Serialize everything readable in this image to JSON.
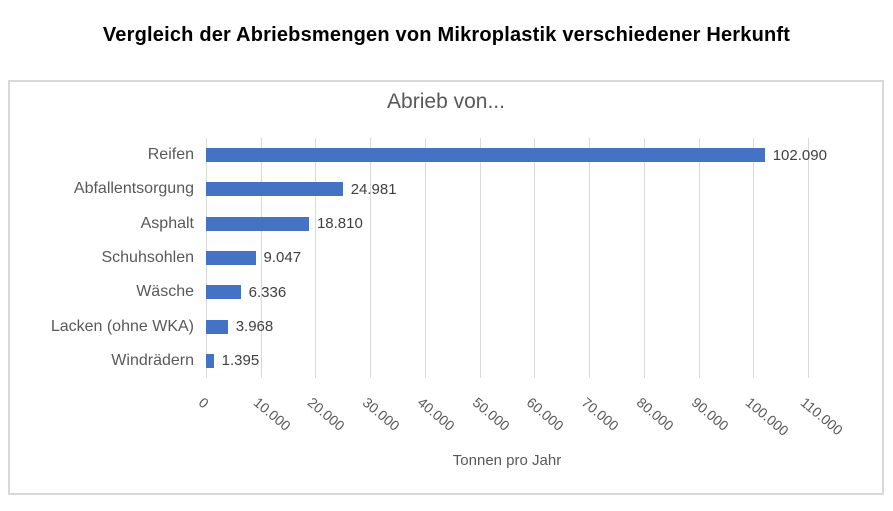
{
  "page": {
    "title": "Vergleich der Abriebsmengen von Mikroplastik verschiedener Herkunft"
  },
  "chart_data": {
    "type": "bar",
    "orientation": "horizontal",
    "title": "Abrieb von...",
    "categories": [
      "Reifen",
      "Abfallentsorgung",
      "Asphalt",
      "Schuhsohlen",
      "Wäsche",
      "Lacken (ohne WKA)",
      "Windrädern"
    ],
    "values": [
      102090,
      24981,
      18810,
      9047,
      6336,
      3968,
      1395
    ],
    "value_labels": [
      "102.090",
      "24.981",
      "18.810",
      "9.047",
      "6.336",
      "3.968",
      "1.395"
    ],
    "xlabel": "Tonnen pro Jahr",
    "ylabel": "",
    "xlim": [
      0,
      110000
    ],
    "x_ticks": [
      0,
      10000,
      20000,
      30000,
      40000,
      50000,
      60000,
      70000,
      80000,
      90000,
      100000,
      110000
    ],
    "x_tick_labels": [
      "0",
      "10.000",
      "20.000",
      "30.000",
      "40.000",
      "50.000",
      "60.000",
      "70.000",
      "80.000",
      "90.000",
      "100.000",
      "110.000"
    ],
    "grid": true,
    "legend": false,
    "data_labels": true,
    "colors": {
      "bar": "#4472c4",
      "gridline": "#d9d9d9",
      "chart_border": "#d9d9d9",
      "axis_text": "#595959",
      "data_label": "#404040",
      "main_title": "#000000"
    }
  }
}
